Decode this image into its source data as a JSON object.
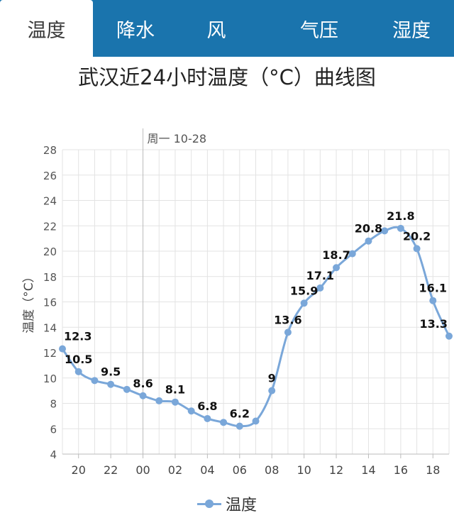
{
  "tabs": [
    {
      "label": "温度",
      "active": true
    },
    {
      "label": "降水",
      "active": false
    },
    {
      "label": "风",
      "active": false
    },
    {
      "label": "气压",
      "active": false
    },
    {
      "label": "湿度",
      "active": false
    }
  ],
  "colors": {
    "tab_bar": "#1a74ad",
    "series": "#7aa7d9",
    "grid": "#e3e3e3"
  },
  "chart_data": {
    "type": "line",
    "title": "武汉近24小时温度（°C）曲线图",
    "ylabel": "温度（°C）",
    "xlabel": "",
    "date_marker": "周一 10-28",
    "ylim": [
      4,
      28
    ],
    "yticks": [
      4,
      6,
      8,
      10,
      12,
      14,
      16,
      18,
      20,
      22,
      24,
      26,
      28
    ],
    "x_hours": [
      "19",
      "20",
      "21",
      "22",
      "23",
      "00",
      "01",
      "02",
      "03",
      "04",
      "05",
      "06",
      "07",
      "08",
      "09",
      "10",
      "11",
      "12",
      "13",
      "14",
      "15",
      "16",
      "17",
      "18",
      "19"
    ],
    "xtick_labels": [
      "20",
      "22",
      "00",
      "02",
      "04",
      "06",
      "08",
      "10",
      "12",
      "14",
      "16",
      "18"
    ],
    "grid": true,
    "legend": "bottom",
    "series": [
      {
        "name": "温度",
        "values": [
          12.3,
          10.5,
          9.8,
          9.5,
          9.1,
          8.6,
          8.2,
          8.1,
          7.4,
          6.8,
          6.5,
          6.2,
          6.6,
          9,
          13.6,
          15.9,
          17.1,
          18.7,
          19.8,
          20.8,
          21.6,
          21.8,
          20.2,
          16.1,
          13.3
        ],
        "labels": [
          "12.3",
          "10.5",
          "",
          "9.5",
          "",
          "8.6",
          "",
          "8.1",
          "",
          "6.8",
          "",
          "6.2",
          "",
          "9",
          "13.6",
          "15.9",
          "17.1",
          "18.7",
          "",
          "20.8",
          "",
          "21.8",
          "20.2",
          "16.1",
          "13.3"
        ]
      }
    ]
  }
}
